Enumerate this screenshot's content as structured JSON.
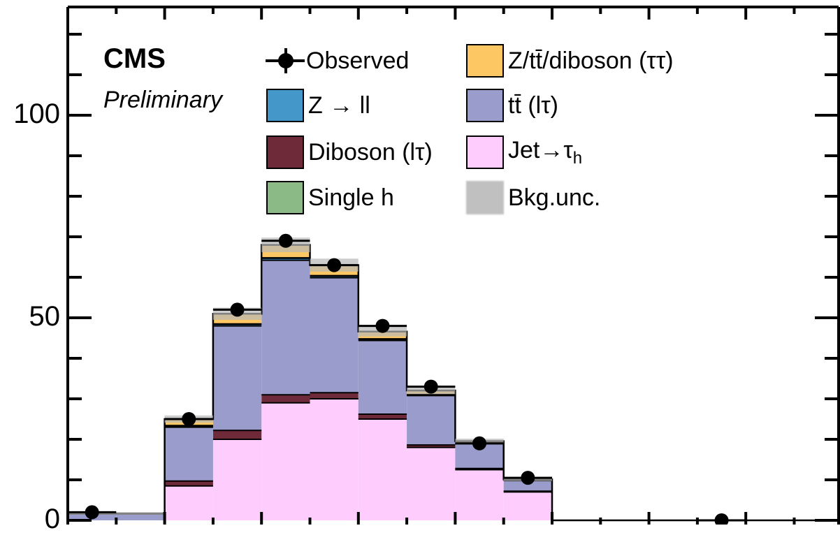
{
  "header": {
    "experiment": "CMS",
    "status": "Preliminary"
  },
  "legend": {
    "observed": "Observed",
    "ztt_diboson": "Z/tt̄/diboson (ττ)",
    "zll": "Z → ll",
    "ttbar": "tt̄ (lτ)",
    "diboson": "Diboson (lτ)",
    "jet_to_tau": "Jet→τ",
    "jet_to_tau_sub": "h",
    "single_h": "Single h",
    "bkg_unc": "Bkg.unc."
  },
  "colors": {
    "jet_to_tau": "#fecdfe",
    "diboson": "#6e2a38",
    "ttbar": "#9a9ccb",
    "zll": "#4397c9",
    "ztt_diboson": "#fdc864",
    "single_h": "#8bba87",
    "bkg_unc": "#b8b8b8"
  },
  "chart_data": {
    "type": "bar",
    "stacked": true,
    "x_bins": [
      0,
      1,
      2,
      3,
      4,
      5,
      6,
      7,
      8,
      9,
      10,
      11,
      12,
      13,
      14,
      15,
      16
    ],
    "ylim": [
      0,
      120
    ],
    "yticks": [
      0,
      50,
      100
    ],
    "series": [
      {
        "name": "Jet→τh",
        "key": "jet_to_tau",
        "values": [
          0,
          0,
          8.5,
          20,
          29,
          30,
          25,
          18,
          12.5,
          7,
          0,
          0,
          0,
          0,
          0,
          0
        ]
      },
      {
        "name": "Diboson (lτ)",
        "key": "diboson",
        "values": [
          0,
          0,
          1.2,
          2.2,
          2.0,
          1.5,
          1.2,
          0.6,
          0.3,
          0.2,
          0,
          0,
          0,
          0,
          0,
          0
        ]
      },
      {
        "name": "tt̄ (lτ)",
        "key": "ttbar",
        "values": [
          1.6,
          1.6,
          13.3,
          25.8,
          33.2,
          28.4,
          18.2,
          12.2,
          6.1,
          2.6,
          0,
          0,
          0,
          0,
          0,
          0
        ]
      },
      {
        "name": "Z → ll",
        "key": "zll",
        "values": [
          0.1,
          0.1,
          0.3,
          0.4,
          0.5,
          0.4,
          0.3,
          0.2,
          0.1,
          0.1,
          0,
          0,
          0,
          0,
          0,
          0
        ]
      },
      {
        "name": "Single h",
        "key": "single_h",
        "values": [
          0,
          0,
          0.1,
          0.1,
          0.1,
          0.1,
          0.1,
          0.05,
          0.05,
          0,
          0,
          0,
          0,
          0,
          0,
          0
        ]
      },
      {
        "name": "Z/tt̄/diboson (ττ)",
        "key": "ztt_diboson",
        "values": [
          0,
          0,
          1.6,
          2.5,
          3.2,
          2.6,
          1.8,
          1.0,
          0.5,
          0.2,
          0,
          0,
          0,
          0,
          0,
          0
        ]
      }
    ],
    "bkg_unc": [
      0.3,
      0.3,
      0.9,
      1.5,
      1.8,
      1.6,
      1.2,
      0.9,
      0.6,
      0.4,
      0,
      0,
      0,
      0,
      0,
      0
    ],
    "observed": [
      {
        "x": 0.5,
        "y": 2
      },
      {
        "x": 2.5,
        "y": 25
      },
      {
        "x": 3.5,
        "y": 52
      },
      {
        "x": 4.5,
        "y": 69
      },
      {
        "x": 5.5,
        "y": 63
      },
      {
        "x": 6.5,
        "y": 48
      },
      {
        "x": 7.5,
        "y": 33
      },
      {
        "x": 8.5,
        "y": 19
      },
      {
        "x": 9.5,
        "y": 10.5
      },
      {
        "x": 13.5,
        "y": 0
      }
    ]
  }
}
